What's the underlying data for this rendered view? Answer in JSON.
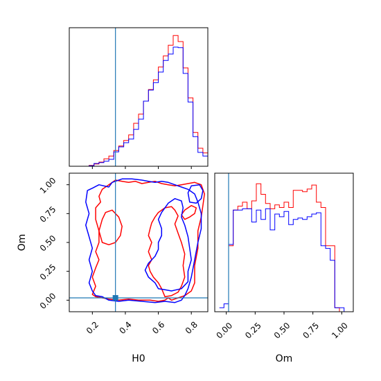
{
  "chart_data": [
    {
      "panel": "H0 marginal",
      "type": "step-histogram",
      "x_range": [
        0.06,
        0.9
      ],
      "bin_width": 0.03,
      "x_bin_starts": [
        0.06,
        0.09,
        0.12,
        0.15,
        0.18,
        0.21,
        0.24,
        0.27,
        0.3,
        0.33,
        0.36,
        0.39,
        0.42,
        0.45,
        0.48,
        0.51,
        0.54,
        0.57,
        0.6,
        0.63,
        0.66,
        0.69,
        0.72,
        0.75,
        0.78,
        0.81,
        0.84,
        0.87
      ],
      "series": [
        {
          "color": "#ff0000",
          "values": [
            0,
            0,
            0,
            0,
            0.2,
            0.5,
            0.9,
            1.6,
            2.2,
            3.4,
            4.4,
            5.6,
            6.8,
            9.3,
            11.3,
            14.1,
            16.6,
            18.7,
            21.5,
            23.9,
            26.2,
            28.3,
            27.0,
            21.3,
            14.8,
            7.3,
            3.9,
            2.9
          ]
        },
        {
          "color": "#0000ff",
          "values": [
            0,
            0,
            0,
            0,
            0.1,
            0.6,
            0.8,
            1.1,
            1.5,
            3.1,
            4.2,
            5.1,
            5.9,
            8.0,
            10.2,
            14.1,
            16.5,
            18.1,
            20.4,
            22.9,
            24.3,
            25.8,
            25.7,
            20.1,
            13.9,
            6.4,
            3.0,
            2.2
          ]
        }
      ],
      "truth_line_x": 0.34,
      "line_color": "#1f77b4",
      "x_ticks": [
        0.2,
        0.4,
        0.6,
        0.8
      ],
      "show_tick_labels": false
    },
    {
      "panel": "H0 vs Om 2D contours",
      "type": "contour",
      "x_range": [
        0.06,
        0.9
      ],
      "y_range": [
        -0.1,
        1.1
      ],
      "xlabel": "H0",
      "ylabel": "Om",
      "x_ticks": [
        0.2,
        0.4,
        0.6,
        0.8
      ],
      "x_tick_labels": [
        "0.2",
        "0.4",
        "0.6",
        "0.8"
      ],
      "y_ticks": [
        0.0,
        0.25,
        0.5,
        0.75,
        1.0
      ],
      "y_tick_labels": [
        "0.00",
        "0.25",
        "0.50",
        "0.75",
        "1.00"
      ],
      "truth_point": [
        0.34,
        0.02
      ],
      "line_color": "#1f77b4",
      "series": [
        {
          "color": "#ff0000",
          "points": [
            [
              0.2,
              0.05
            ],
            [
              0.22,
              0.03
            ],
            [
              0.26,
              0.02
            ],
            [
              0.3,
              0.01
            ],
            [
              0.36,
              0.0
            ],
            [
              0.42,
              0.01
            ],
            [
              0.48,
              0.0
            ],
            [
              0.55,
              0.0
            ],
            [
              0.6,
              -0.01
            ],
            [
              0.64,
              0.0
            ],
            [
              0.66,
              0.02
            ],
            [
              0.68,
              0.0
            ],
            [
              0.72,
              0.02
            ],
            [
              0.76,
              0.04
            ],
            [
              0.8,
              0.08
            ],
            [
              0.82,
              0.15
            ],
            [
              0.82,
              0.3
            ],
            [
              0.84,
              0.45
            ],
            [
              0.84,
              0.6
            ],
            [
              0.86,
              0.72
            ],
            [
              0.87,
              0.82
            ],
            [
              0.88,
              0.92
            ],
            [
              0.86,
              1.0
            ],
            [
              0.82,
              1.02
            ],
            [
              0.78,
              1.01
            ],
            [
              0.74,
              1.0
            ],
            [
              0.7,
              0.99
            ],
            [
              0.66,
              1.0
            ],
            [
              0.62,
              1.01
            ],
            [
              0.58,
              1.03
            ],
            [
              0.54,
              1.02
            ],
            [
              0.5,
              1.01
            ],
            [
              0.46,
              1.03
            ],
            [
              0.42,
              1.02
            ],
            [
              0.38,
              1.03
            ],
            [
              0.34,
              1.04
            ],
            [
              0.3,
              1.0
            ],
            [
              0.26,
              0.96
            ],
            [
              0.24,
              0.9
            ],
            [
              0.25,
              0.85
            ],
            [
              0.22,
              0.8
            ],
            [
              0.22,
              0.7
            ],
            [
              0.24,
              0.6
            ],
            [
              0.24,
              0.5
            ],
            [
              0.22,
              0.42
            ],
            [
              0.24,
              0.35
            ],
            [
              0.22,
              0.28
            ],
            [
              0.2,
              0.2
            ],
            [
              0.22,
              0.12
            ],
            [
              0.2,
              0.05
            ]
          ]
        },
        {
          "color": "#ff0000",
          "points": [
            [
              0.64,
              0.03
            ],
            [
              0.62,
              0.1
            ],
            [
              0.6,
              0.15
            ],
            [
              0.57,
              0.2
            ],
            [
              0.55,
              0.25
            ],
            [
              0.54,
              0.3
            ],
            [
              0.56,
              0.35
            ],
            [
              0.54,
              0.42
            ],
            [
              0.56,
              0.5
            ],
            [
              0.54,
              0.56
            ],
            [
              0.55,
              0.62
            ],
            [
              0.56,
              0.67
            ],
            [
              0.58,
              0.72
            ],
            [
              0.6,
              0.76
            ],
            [
              0.64,
              0.8
            ],
            [
              0.68,
              0.81
            ],
            [
              0.7,
              0.78
            ],
            [
              0.72,
              0.73
            ],
            [
              0.7,
              0.66
            ],
            [
              0.72,
              0.58
            ],
            [
              0.74,
              0.5
            ],
            [
              0.76,
              0.4
            ],
            [
              0.75,
              0.3
            ],
            [
              0.76,
              0.2
            ],
            [
              0.74,
              0.12
            ],
            [
              0.72,
              0.07
            ],
            [
              0.68,
              0.04
            ],
            [
              0.64,
              0.03
            ]
          ]
        },
        {
          "color": "#ff0000",
          "points": [
            [
              0.26,
              0.5
            ],
            [
              0.24,
              0.6
            ],
            [
              0.26,
              0.7
            ],
            [
              0.28,
              0.76
            ],
            [
              0.32,
              0.78
            ],
            [
              0.36,
              0.72
            ],
            [
              0.38,
              0.64
            ],
            [
              0.37,
              0.56
            ],
            [
              0.34,
              0.5
            ],
            [
              0.3,
              0.48
            ],
            [
              0.26,
              0.5
            ]
          ]
        },
        {
          "color": "#ff0000",
          "points": [
            [
              0.76,
              0.7
            ],
            [
              0.74,
              0.74
            ],
            [
              0.76,
              0.78
            ],
            [
              0.8,
              0.82
            ],
            [
              0.83,
              0.8
            ],
            [
              0.82,
              0.75
            ],
            [
              0.79,
              0.72
            ],
            [
              0.76,
              0.7
            ]
          ]
        },
        {
          "color": "#0000ff",
          "points": [
            [
              0.2,
              0.08
            ],
            [
              0.22,
              0.04
            ],
            [
              0.26,
              0.03
            ],
            [
              0.3,
              0.0
            ],
            [
              0.36,
              -0.01
            ],
            [
              0.42,
              0.0
            ],
            [
              0.5,
              -0.01
            ],
            [
              0.58,
              -0.02
            ],
            [
              0.64,
              -0.01
            ],
            [
              0.7,
              -0.02
            ],
            [
              0.74,
              0.0
            ],
            [
              0.76,
              0.04
            ],
            [
              0.78,
              0.1
            ],
            [
              0.8,
              0.2
            ],
            [
              0.82,
              0.35
            ],
            [
              0.84,
              0.5
            ],
            [
              0.86,
              0.62
            ],
            [
              0.86,
              0.75
            ],
            [
              0.84,
              0.85
            ],
            [
              0.82,
              0.92
            ],
            [
              0.78,
              0.96
            ],
            [
              0.74,
              0.98
            ],
            [
              0.7,
              1.0
            ],
            [
              0.66,
              1.02
            ],
            [
              0.62,
              1.03
            ],
            [
              0.58,
              1.02
            ],
            [
              0.54,
              1.03
            ],
            [
              0.5,
              1.04
            ],
            [
              0.44,
              1.05
            ],
            [
              0.38,
              1.05
            ],
            [
              0.32,
              1.02
            ],
            [
              0.3,
              0.98
            ],
            [
              0.24,
              1.0
            ],
            [
              0.2,
              0.97
            ],
            [
              0.17,
              0.95
            ],
            [
              0.16,
              0.85
            ],
            [
              0.18,
              0.75
            ],
            [
              0.16,
              0.65
            ],
            [
              0.18,
              0.55
            ],
            [
              0.2,
              0.45
            ],
            [
              0.18,
              0.35
            ],
            [
              0.2,
              0.25
            ],
            [
              0.18,
              0.15
            ],
            [
              0.2,
              0.08
            ]
          ]
        },
        {
          "color": "#0000ff",
          "points": [
            [
              0.6,
              0.1
            ],
            [
              0.58,
              0.15
            ],
            [
              0.54,
              0.2
            ],
            [
              0.52,
              0.26
            ],
            [
              0.54,
              0.32
            ],
            [
              0.58,
              0.38
            ],
            [
              0.6,
              0.44
            ],
            [
              0.6,
              0.5
            ],
            [
              0.62,
              0.56
            ],
            [
              0.62,
              0.62
            ],
            [
              0.6,
              0.7
            ],
            [
              0.62,
              0.76
            ],
            [
              0.66,
              0.84
            ],
            [
              0.7,
              0.88
            ],
            [
              0.74,
              0.86
            ],
            [
              0.75,
              0.8
            ],
            [
              0.74,
              0.72
            ],
            [
              0.76,
              0.65
            ],
            [
              0.78,
              0.55
            ],
            [
              0.79,
              0.45
            ],
            [
              0.8,
              0.35
            ],
            [
              0.78,
              0.25
            ],
            [
              0.78,
              0.16
            ],
            [
              0.74,
              0.1
            ],
            [
              0.68,
              0.08
            ],
            [
              0.64,
              0.09
            ],
            [
              0.6,
              0.1
            ]
          ]
        },
        {
          "color": "#0000ff",
          "points": [
            [
              0.79,
              0.85
            ],
            [
              0.78,
              0.93
            ],
            [
              0.8,
              0.99
            ],
            [
              0.85,
              1.0
            ],
            [
              0.87,
              0.95
            ],
            [
              0.86,
              0.88
            ],
            [
              0.83,
              0.84
            ],
            [
              0.79,
              0.85
            ]
          ]
        }
      ]
    },
    {
      "panel": "Om marginal",
      "type": "step-histogram",
      "x_range": [
        -0.1,
        1.1
      ],
      "bin_width": 0.04,
      "x_bin_starts": [
        -0.06,
        -0.02,
        0.02,
        0.06,
        0.1,
        0.14,
        0.18,
        0.22,
        0.26,
        0.3,
        0.34,
        0.38,
        0.42,
        0.46,
        0.5,
        0.54,
        0.58,
        0.62,
        0.66,
        0.7,
        0.74,
        0.78,
        0.82,
        0.86,
        0.9,
        0.94,
        0.98,
        1.02
      ],
      "series": [
        {
          "color": "#ff0000",
          "values": [
            0,
            0,
            50,
            77,
            80,
            83,
            78,
            84,
            97,
            89,
            82,
            78,
            81,
            79,
            83,
            79,
            92,
            92,
            91,
            93,
            96,
            83,
            79,
            50,
            50,
            3,
            0,
            0
          ]
        },
        {
          "color": "#0000ff",
          "values": [
            3,
            6,
            51,
            77,
            77,
            78,
            78,
            68,
            77,
            70,
            78,
            62,
            74,
            72,
            76,
            66,
            70,
            71,
            70,
            72,
            74,
            75,
            50,
            48,
            39,
            3,
            3,
            0
          ]
        }
      ],
      "truth_line_x": 0.02,
      "line_color": "#1f77b4",
      "xlabel": "Om",
      "x_ticks": [
        0.0,
        0.25,
        0.5,
        0.75,
        1.0
      ],
      "x_tick_labels": [
        "0.00",
        "0.25",
        "0.50",
        "0.75",
        "1.00"
      ]
    }
  ]
}
